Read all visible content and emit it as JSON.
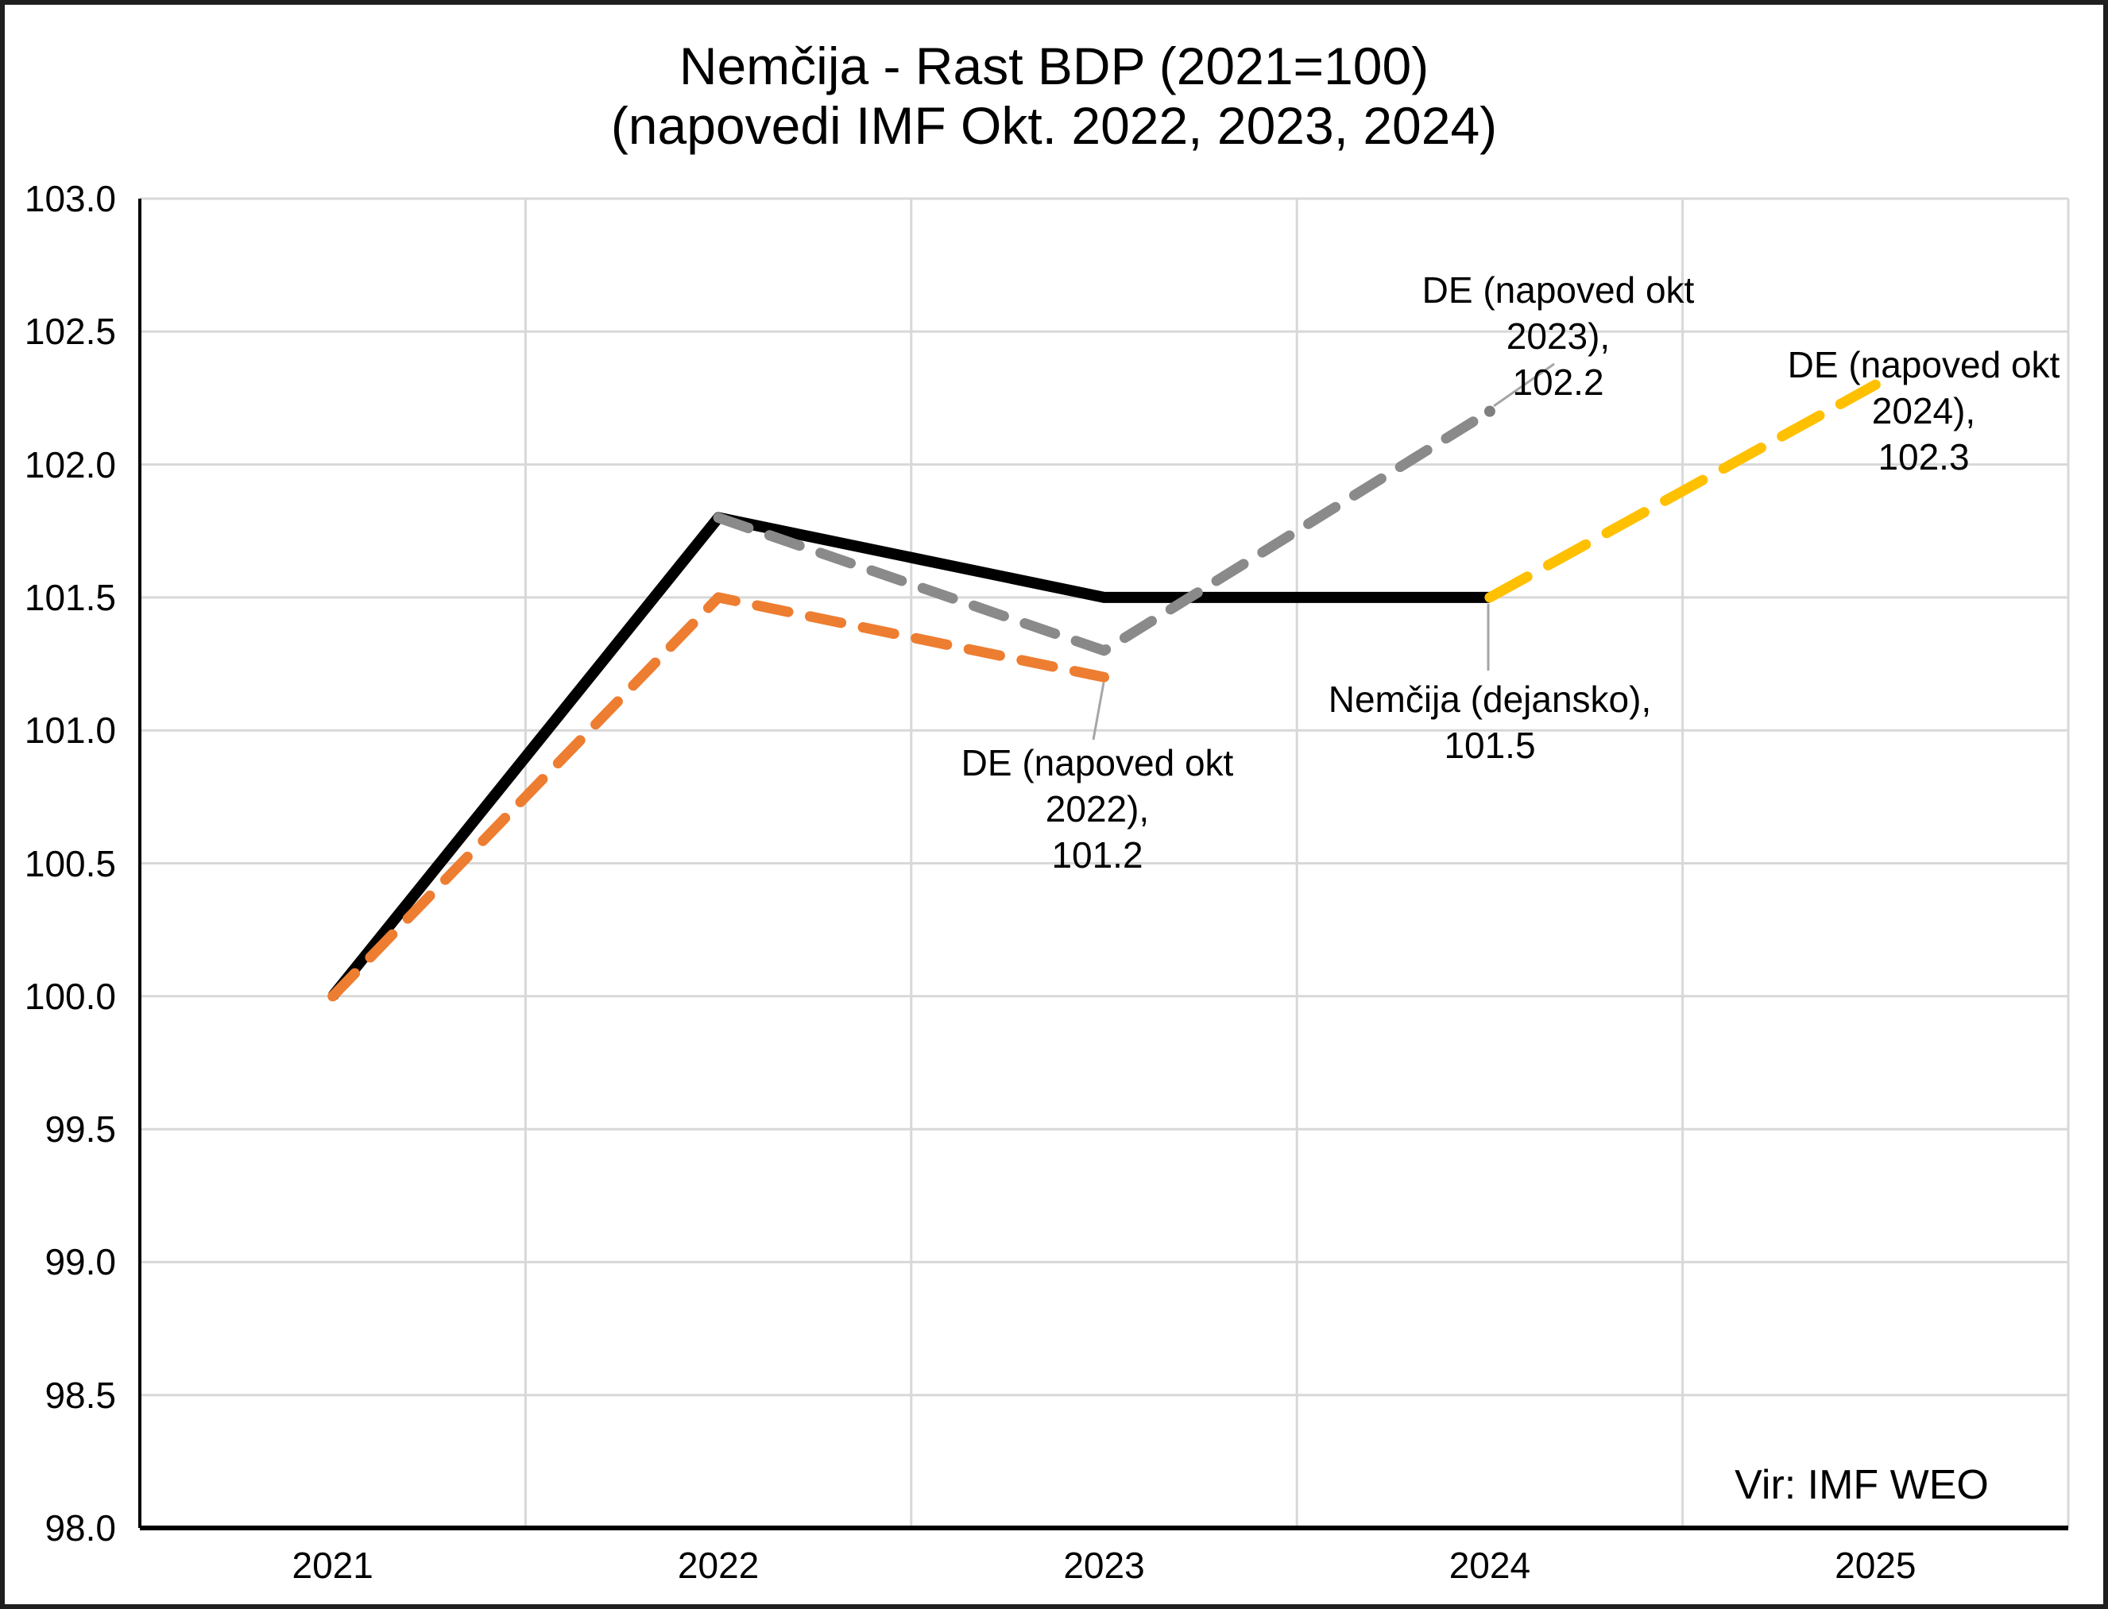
{
  "title": {
    "line1": "Nemčija - Rast BDP (2021=100)",
    "line2": "(napovedi IMF Okt. 2022, 2023, 2024)"
  },
  "source_note": "Vir: IMF WEO",
  "chart_data": {
    "type": "line",
    "categories": [
      "2021",
      "2022",
      "2023",
      "2024",
      "2025"
    ],
    "ylim": [
      98.0,
      103.0
    ],
    "y_axis": {
      "min": 98.0,
      "max": 103.0,
      "step": 0.5,
      "tick_labels": [
        "103.0",
        "102.5",
        "102.0",
        "101.5",
        "101.0",
        "100.5",
        "100.0",
        "99.5",
        "99.0",
        "98.5",
        "98.0"
      ]
    },
    "grid": "on",
    "legend": "none",
    "series": [
      {
        "name": "Nemčija (dejansko)",
        "color": "#000000",
        "style": "solid",
        "start_index": 0,
        "values": [
          100.0,
          101.8,
          101.5,
          101.5
        ]
      },
      {
        "name": "DE (napoved okt 2022)",
        "color": "#ED7D31",
        "style": "dashed",
        "start_index": 0,
        "values": [
          100.0,
          101.5,
          101.2
        ]
      },
      {
        "name": "DE (napoved okt 2023)",
        "color": "#8A8A8A",
        "style": "dashed",
        "start_index": 1,
        "end_marker": true,
        "values": [
          101.8,
          101.3,
          102.2
        ]
      },
      {
        "name": "DE (napoved okt 2024)",
        "color": "#FFC000",
        "style": "dashed",
        "start_index": 3,
        "values": [
          101.5,
          102.3
        ]
      }
    ],
    "annotations": [
      {
        "line1": "DE (napoved okt 2023),",
        "line2": "102.2",
        "series": "DE (napoved okt 2023)",
        "value": 102.2,
        "category": "2024"
      },
      {
        "line1": "DE (napoved okt 2024),",
        "line2": "102.3",
        "series": "DE (napoved okt 2024)",
        "value": 102.3,
        "category": "2025"
      },
      {
        "line1": "Nemčija (dejansko), 101.5",
        "series": "Nemčija (dejansko)",
        "value": 101.5,
        "category": "2024"
      },
      {
        "line1": "DE (napoved okt 2022),",
        "line2": "101.2",
        "series": "DE (napoved okt 2022)",
        "value": 101.2,
        "category": "2023"
      }
    ],
    "colors": {
      "gridline": "#D8D8D8",
      "axis": "#000000",
      "leader_line": "#A6A6A6",
      "marker_dot": "#7F7F7F"
    }
  }
}
